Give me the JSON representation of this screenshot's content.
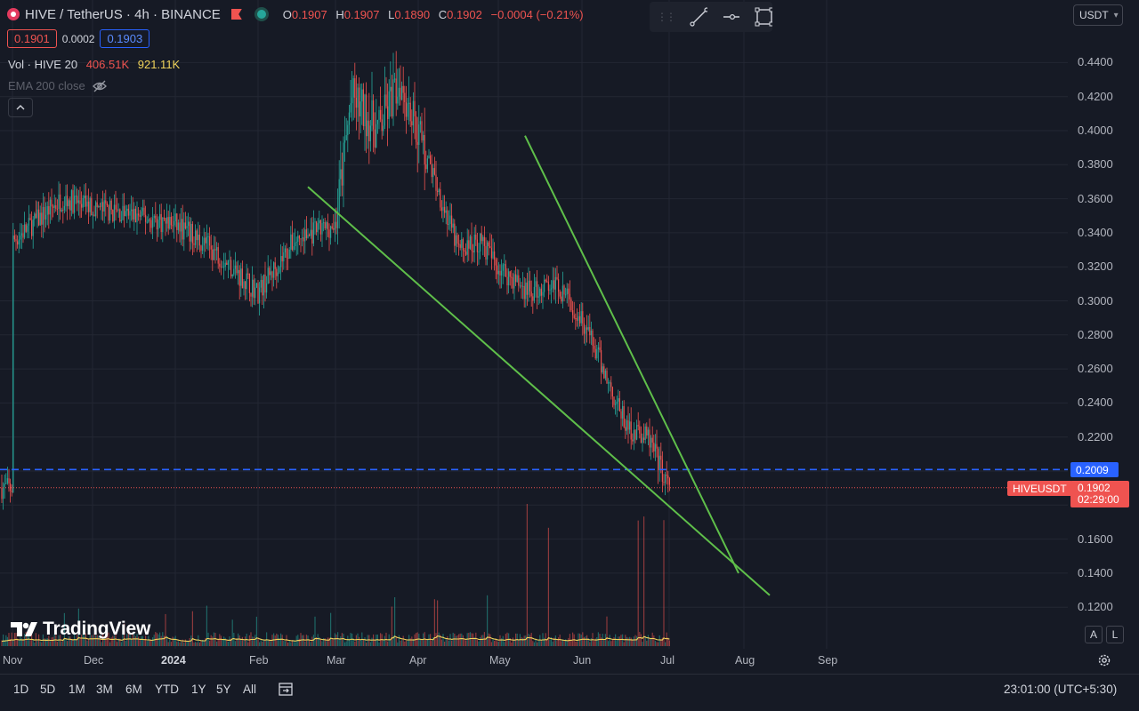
{
  "header": {
    "symbol": "HIVE / TetherUS · 4h · BINANCE",
    "ohlc": {
      "o_label": "O",
      "o": "0.1907",
      "h_label": "H",
      "h": "0.1907",
      "l_label": "L",
      "l": "0.1890",
      "c_label": "C",
      "c": "0.1902",
      "change": "−0.0004 (−0.21%)"
    },
    "bid": "0.1901",
    "spread": "0.0002",
    "ask": "0.1903",
    "volume": {
      "label": "Vol · HIVE",
      "length": "20",
      "value_a": "406.51K",
      "value_b": "921.11K"
    },
    "ema_label": "EMA 200 close"
  },
  "toolbar": {
    "currency": "USDT",
    "icons": [
      "grip-icon",
      "trend-line-icon",
      "horizontal-ray-icon",
      "rectangle-icon"
    ]
  },
  "price_axis": {
    "labels": [
      "0.4400",
      "0.4200",
      "0.4000",
      "0.3800",
      "0.3600",
      "0.3400",
      "0.3200",
      "0.3000",
      "0.2800",
      "0.2600",
      "0.2400",
      "0.2200",
      "0.1600",
      "0.1400",
      "0.1200"
    ],
    "alert_price": "0.2009",
    "symbol_tag": "HIVEUSDT",
    "last_price": "0.1902",
    "countdown": "02:29:00"
  },
  "time_axis": {
    "labels": [
      "Nov",
      "Dec",
      "2024",
      "Feb",
      "Mar",
      "Apr",
      "May",
      "Jun",
      "Jul",
      "Aug",
      "Sep"
    ]
  },
  "ranges": [
    "1D",
    "5D",
    "1M",
    "3M",
    "6M",
    "YTD",
    "1Y",
    "5Y",
    "All"
  ],
  "clock": "23:01:00 (UTC+5:30)",
  "brand": "TradingView",
  "scale_buttons": {
    "auto": "A",
    "log": "L"
  },
  "colors": {
    "up": "#26a69a",
    "down": "#ef5350",
    "trendline": "#5fbf4a",
    "alert_line": "#2962ff",
    "background": "#161a25"
  },
  "chart_data": {
    "type": "candlestick",
    "pair": "HIVE / TetherUS",
    "interval": "4h",
    "exchange": "BINANCE",
    "ylim": [
      0.11,
      0.45
    ],
    "x_range": [
      "Nov 2023",
      "Sep 2024"
    ],
    "grid": true,
    "approx_close_path": [
      {
        "date": "Nov",
        "close": 0.335
      },
      {
        "date": "late Nov",
        "close": 0.36
      },
      {
        "date": "Dec",
        "close": 0.355
      },
      {
        "date": "mid Dec",
        "close": 0.35
      },
      {
        "date": "2024",
        "close": 0.345
      },
      {
        "date": "mid Jan",
        "close": 0.33
      },
      {
        "date": "Feb",
        "close": 0.305
      },
      {
        "date": "mid Feb",
        "close": 0.335
      },
      {
        "date": "Mar",
        "close": 0.345
      },
      {
        "date": "early Mar",
        "close": 0.42
      },
      {
        "date": "mid Mar",
        "close": 0.4
      },
      {
        "date": "late Mar",
        "close": 0.43
      },
      {
        "date": "Apr",
        "close": 0.4
      },
      {
        "date": "mid Apr",
        "close": 0.33
      },
      {
        "date": "late Apr",
        "close": 0.335
      },
      {
        "date": "May",
        "close": 0.32
      },
      {
        "date": "mid May",
        "close": 0.305
      },
      {
        "date": "late May",
        "close": 0.31
      },
      {
        "date": "Jun",
        "close": 0.29
      },
      {
        "date": "mid Jun",
        "close": 0.225
      },
      {
        "date": "late Jun",
        "close": 0.22
      },
      {
        "date": "Jul",
        "close": 0.1902
      }
    ],
    "trendlines": [
      {
        "from": {
          "date": "late Feb",
          "price": 0.367
        },
        "to": {
          "date": "mid Aug",
          "price": 0.127
        }
      },
      {
        "from": {
          "date": "early May",
          "price": 0.397
        },
        "to": {
          "date": "early Aug",
          "price": 0.14
        }
      }
    ],
    "horizontal_lines": [
      {
        "price": 0.2009,
        "style": "dashed"
      },
      {
        "price": 0.1902,
        "style": "dotted"
      }
    ],
    "volume_series": {
      "peak_label": "921.11K",
      "current": "406.51K"
    }
  }
}
